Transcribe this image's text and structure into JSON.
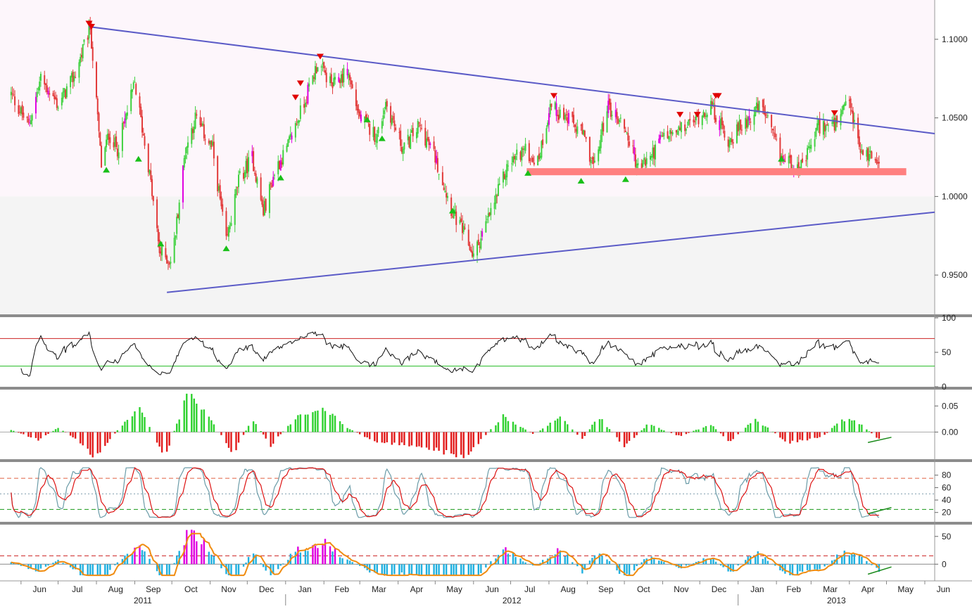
{
  "chart_data": [
    {
      "type": "candlestick",
      "panel": "price",
      "y_ticks": [
        "1.1000",
        "1.0500",
        "1.0000",
        "0.9500"
      ],
      "ylim": [
        0.925,
        1.125
      ],
      "colors": {
        "up": "#3fd13f",
        "down": "#e23a3a",
        "trendline": "#5b5bc7",
        "support_band": "#ff8080",
        "signal_up": "#19c019",
        "signal_down": "#e00000",
        "highlight": "#e000e0"
      },
      "anchors": [
        {
          "date": "2011-05-24",
          "value": 1.065
        },
        {
          "date": "2011-06-07",
          "value": 1.045
        },
        {
          "date": "2011-06-17",
          "value": 1.075
        },
        {
          "date": "2011-07-01",
          "value": 1.058
        },
        {
          "date": "2011-07-15",
          "value": 1.078
        },
        {
          "date": "2011-07-27",
          "value": 1.108
        },
        {
          "date": "2011-08-05",
          "value": 1.02
        },
        {
          "date": "2011-08-11",
          "value": 1.04
        },
        {
          "date": "2011-08-18",
          "value": 1.03
        },
        {
          "date": "2011-09-01",
          "value": 1.072
        },
        {
          "date": "2011-09-12",
          "value": 1.02
        },
        {
          "date": "2011-09-21",
          "value": 0.965
        },
        {
          "date": "2011-10-01",
          "value": 0.958
        },
        {
          "date": "2011-10-12",
          "value": 1.03
        },
        {
          "date": "2011-10-20",
          "value": 1.05
        },
        {
          "date": "2011-11-03",
          "value": 1.03
        },
        {
          "date": "2011-11-14",
          "value": 0.97
        },
        {
          "date": "2011-11-24",
          "value": 1.01
        },
        {
          "date": "2011-12-05",
          "value": 1.025
        },
        {
          "date": "2011-12-14",
          "value": 0.99
        },
        {
          "date": "2011-12-24",
          "value": 1.018
        },
        {
          "date": "2012-01-02",
          "value": 1.03
        },
        {
          "date": "2012-01-16",
          "value": 1.06
        },
        {
          "date": "2012-01-27",
          "value": 1.085
        },
        {
          "date": "2012-02-08",
          "value": 1.07
        },
        {
          "date": "2012-02-20",
          "value": 1.08
        },
        {
          "date": "2012-03-01",
          "value": 1.05
        },
        {
          "date": "2012-03-15",
          "value": 1.038
        },
        {
          "date": "2012-03-22",
          "value": 1.06
        },
        {
          "date": "2012-04-05",
          "value": 1.03
        },
        {
          "date": "2012-04-18",
          "value": 1.045
        },
        {
          "date": "2012-05-01",
          "value": 1.025
        },
        {
          "date": "2012-05-15",
          "value": 0.99
        },
        {
          "date": "2012-05-25",
          "value": 0.975
        },
        {
          "date": "2012-06-01",
          "value": 0.962
        },
        {
          "date": "2012-06-15",
          "value": 0.99
        },
        {
          "date": "2012-06-29",
          "value": 1.02
        },
        {
          "date": "2012-07-11",
          "value": 1.03
        },
        {
          "date": "2012-07-23",
          "value": 1.022
        },
        {
          "date": "2012-08-02",
          "value": 1.058
        },
        {
          "date": "2012-08-15",
          "value": 1.05
        },
        {
          "date": "2012-08-28",
          "value": 1.04
        },
        {
          "date": "2012-09-07",
          "value": 1.018
        },
        {
          "date": "2012-09-17",
          "value": 1.058
        },
        {
          "date": "2012-10-01",
          "value": 1.045
        },
        {
          "date": "2012-10-12",
          "value": 1.018
        },
        {
          "date": "2012-10-22",
          "value": 1.025
        },
        {
          "date": "2012-11-01",
          "value": 1.038
        },
        {
          "date": "2012-11-12",
          "value": 1.04
        },
        {
          "date": "2012-11-26",
          "value": 1.048
        },
        {
          "date": "2012-12-10",
          "value": 1.058
        },
        {
          "date": "2012-12-24",
          "value": 1.035
        },
        {
          "date": "2013-01-07",
          "value": 1.048
        },
        {
          "date": "2013-01-20",
          "value": 1.058
        },
        {
          "date": "2013-02-04",
          "value": 1.025
        },
        {
          "date": "2013-02-22",
          "value": 1.018
        },
        {
          "date": "2013-03-07",
          "value": 1.045
        },
        {
          "date": "2013-03-21",
          "value": 1.045
        },
        {
          "date": "2013-04-01",
          "value": 1.06
        },
        {
          "date": "2013-04-10",
          "value": 1.028
        },
        {
          "date": "2013-04-24",
          "value": 1.025
        }
      ],
      "trendlines": [
        {
          "from": {
            "date": "2011-07-26",
            "value": 1.108
          },
          "to": {
            "date": "2013-06-09",
            "value": 1.04
          }
        },
        {
          "from": {
            "date": "2011-09-27",
            "value": 0.939
          },
          "to": {
            "date": "2013-06-09",
            "value": 0.99
          }
        }
      ],
      "support_band": {
        "from": "2012-07-14",
        "to": "2013-05-17",
        "low": 1.0135,
        "high": 1.018
      },
      "sell_signals": [
        {
          "date": "2011-07-26",
          "value": 1.11
        },
        {
          "date": "2011-07-28",
          "value": 1.108
        },
        {
          "date": "2012-01-29",
          "value": 1.089
        },
        {
          "date": "2012-01-09",
          "value": 1.063
        },
        {
          "date": "2012-01-13",
          "value": 1.072
        },
        {
          "date": "2012-08-05",
          "value": 1.064
        },
        {
          "date": "2012-11-15",
          "value": 1.052
        },
        {
          "date": "2012-11-29",
          "value": 1.052
        },
        {
          "date": "2012-12-14",
          "value": 1.064
        },
        {
          "date": "2012-12-16",
          "value": 1.064
        },
        {
          "date": "2013-03-20",
          "value": 1.053
        }
      ],
      "buy_signals": [
        {
          "date": "2011-08-09",
          "value": 1.017
        },
        {
          "date": "2011-09-04",
          "value": 1.024
        },
        {
          "date": "2011-09-22",
          "value": 0.97
        },
        {
          "date": "2011-11-14",
          "value": 0.967
        },
        {
          "date": "2011-12-28",
          "value": 1.012
        },
        {
          "date": "2012-03-07",
          "value": 1.049
        },
        {
          "date": "2012-03-19",
          "value": 1.037
        },
        {
          "date": "2012-05-15",
          "value": 0.991
        },
        {
          "date": "2012-07-15",
          "value": 1.015
        },
        {
          "date": "2012-08-27",
          "value": 1.01
        },
        {
          "date": "2012-10-02",
          "value": 1.011
        },
        {
          "date": "2013-02-05",
          "value": 1.024
        }
      ]
    },
    {
      "type": "line",
      "panel": "rsi",
      "y_ticks": [
        "100",
        "50",
        "0"
      ],
      "ylim": [
        0,
        100
      ],
      "upper_level": 70,
      "lower_level": 30,
      "colors": {
        "line": "#111111",
        "upper": "#cc2222",
        "lower": "#22bb22"
      }
    },
    {
      "type": "histogram",
      "panel": "oscillator",
      "y_ticks": [
        "0.05",
        "0.00"
      ],
      "ylim": [
        -0.052,
        0.08
      ],
      "colors": {
        "positive": "#2ed12e",
        "negative": "#e21a1a"
      },
      "anchors": [
        {
          "date": "2011-05-24",
          "value": 0.004
        },
        {
          "date": "2011-06-15",
          "value": -0.015
        },
        {
          "date": "2011-07-01",
          "value": 0.008
        },
        {
          "date": "2011-07-15",
          "value": -0.012
        },
        {
          "date": "2011-08-01",
          "value": -0.05
        },
        {
          "date": "2011-08-20",
          "value": 0.01
        },
        {
          "date": "2011-09-06",
          "value": 0.045
        },
        {
          "date": "2011-09-25",
          "value": -0.05
        },
        {
          "date": "2011-10-15",
          "value": 0.08
        },
        {
          "date": "2011-11-05",
          "value": 0.01
        },
        {
          "date": "2011-11-20",
          "value": -0.04
        },
        {
          "date": "2011-12-05",
          "value": 0.025
        },
        {
          "date": "2011-12-20",
          "value": -0.025
        },
        {
          "date": "2012-01-10",
          "value": 0.03
        },
        {
          "date": "2012-02-01",
          "value": 0.045
        },
        {
          "date": "2012-02-20",
          "value": 0.008
        },
        {
          "date": "2012-03-15",
          "value": -0.02
        },
        {
          "date": "2012-04-15",
          "value": -0.025
        },
        {
          "date": "2012-05-25",
          "value": -0.048
        },
        {
          "date": "2012-06-25",
          "value": 0.03
        },
        {
          "date": "2012-07-20",
          "value": -0.005
        },
        {
          "date": "2012-08-10",
          "value": 0.03
        },
        {
          "date": "2012-08-28",
          "value": -0.015
        },
        {
          "date": "2012-09-10",
          "value": 0.03
        },
        {
          "date": "2012-10-01",
          "value": -0.028
        },
        {
          "date": "2012-10-20",
          "value": 0.015
        },
        {
          "date": "2012-11-15",
          "value": -0.008
        },
        {
          "date": "2012-12-10",
          "value": 0.015
        },
        {
          "date": "2012-12-25",
          "value": -0.018
        },
        {
          "date": "2013-01-15",
          "value": 0.025
        },
        {
          "date": "2013-02-10",
          "value": -0.02
        },
        {
          "date": "2013-03-10",
          "value": -0.01
        },
        {
          "date": "2013-03-25",
          "value": 0.022
        },
        {
          "date": "2013-04-06",
          "value": 0.022
        },
        {
          "date": "2013-04-24",
          "value": -0.012
        }
      ]
    },
    {
      "type": "line",
      "panel": "stochastic",
      "y_ticks": [
        "80",
        "60",
        "40",
        "20"
      ],
      "ylim": [
        5,
        100
      ],
      "upper_level": 75,
      "mid_level": 50,
      "lower_level": 25,
      "colors": {
        "fast": "#6b9ca8",
        "slow": "#dd1111",
        "upper": "#e06040",
        "mid": "#7a9aaa",
        "lower": "#1a9a1a"
      }
    },
    {
      "type": "histogram",
      "panel": "momentum",
      "y_ticks": [
        "50",
        "0"
      ],
      "ylim": [
        -25,
        70
      ],
      "level": 15,
      "colors": {
        "positive": "#1fb0e0",
        "negative": "#1fb0e0",
        "extreme": "#e000e0",
        "signal": "#f08c10",
        "level": "#cc2222"
      }
    },
    {
      "type": "time_axis",
      "months": [
        "Jun",
        "Jul",
        "Aug",
        "Sep",
        "Oct",
        "Nov",
        "Dec",
        "Jan",
        "Feb",
        "Mar",
        "Apr",
        "May",
        "Jun",
        "Jul",
        "Aug",
        "Sep",
        "Oct",
        "Nov",
        "Dec",
        "Jan",
        "Feb",
        "Mar",
        "Apr",
        "May",
        "Jun"
      ],
      "years": [
        "2011",
        "2012",
        "2013"
      ]
    }
  ]
}
